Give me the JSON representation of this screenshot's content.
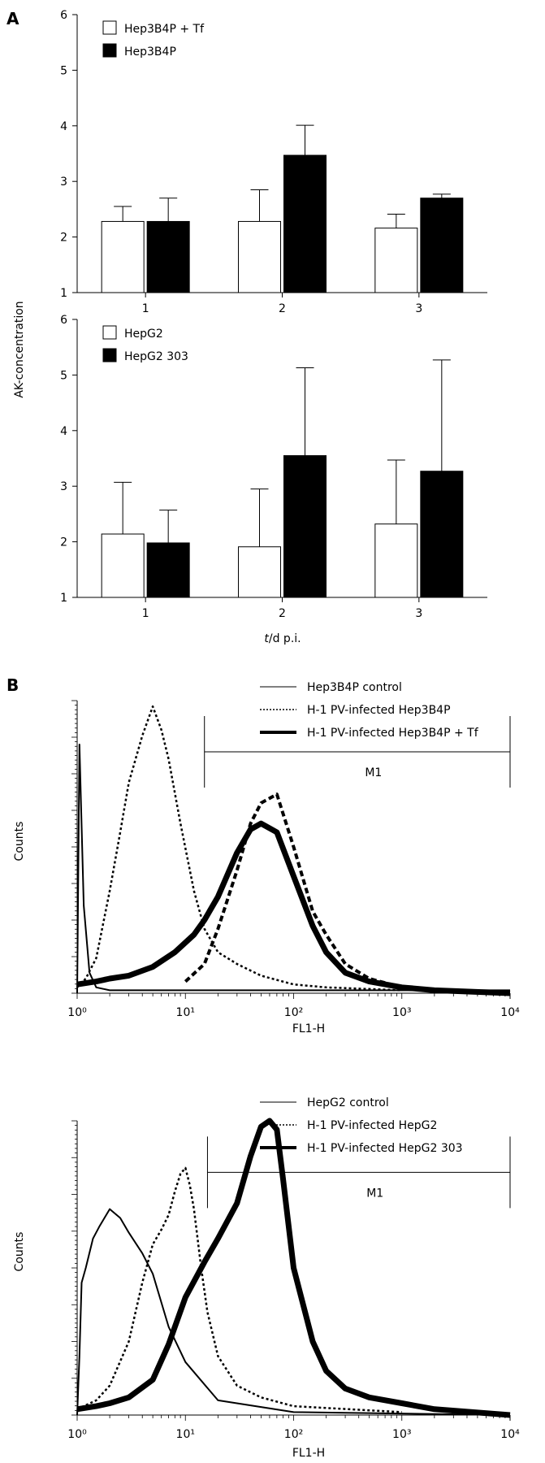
{
  "panel_labels": [
    "A",
    "B"
  ],
  "chart_data": [
    {
      "type": "bar",
      "panel": "A",
      "title": "",
      "xlabel": "",
      "ylabel": "AK-concentration",
      "ylim": [
        1,
        6
      ],
      "yticks": [
        1,
        2,
        3,
        4,
        5,
        6
      ],
      "categories": [
        "1",
        "2",
        "3"
      ],
      "legend_position": "top-left",
      "series": [
        {
          "name": "Hep3B4P + Tf",
          "fill": "#ffffff",
          "values": [
            2.28,
            2.28,
            2.16
          ],
          "errors": [
            0.27,
            0.57,
            0.25
          ]
        },
        {
          "name": "Hep3B4P",
          "fill": "#000000",
          "values": [
            2.28,
            3.47,
            2.7
          ],
          "errors": [
            0.42,
            0.54,
            0.07
          ]
        }
      ]
    },
    {
      "type": "bar",
      "panel": "A",
      "title": "",
      "xlabel": "t/d p.i.",
      "ylabel": "AK-concentration",
      "ylim": [
        1,
        6
      ],
      "yticks": [
        1,
        2,
        3,
        4,
        5,
        6
      ],
      "categories": [
        "1",
        "2",
        "3"
      ],
      "legend_position": "top-left",
      "series": [
        {
          "name": "HepG2",
          "fill": "#ffffff",
          "values": [
            2.14,
            1.91,
            2.32
          ],
          "errors": [
            0.93,
            1.04,
            1.15
          ]
        },
        {
          "name": "HepG2 303",
          "fill": "#000000",
          "values": [
            1.98,
            3.55,
            3.27
          ],
          "errors": [
            0.59,
            1.58,
            2.0
          ]
        }
      ]
    },
    {
      "type": "line",
      "panel": "B",
      "title": "",
      "xlabel": "FL1-H",
      "ylabel": "Counts",
      "x_scale": "log",
      "xlim": [
        1,
        10000
      ],
      "xticks": [
        "10⁰",
        "10¹",
        "10²",
        "10³",
        "10⁴"
      ],
      "gate": {
        "label": "M1",
        "range": [
          15,
          10000
        ]
      },
      "legend_position": "top-right",
      "series": [
        {
          "name": "Hep3B4P control",
          "style": "thin",
          "x": [
            1.0,
            1.05,
            1.15,
            1.3,
            1.5,
            2,
            3,
            5,
            10,
            100,
            1000,
            10000
          ],
          "y": [
            0.0,
            0.85,
            0.3,
            0.07,
            0.02,
            0.01,
            0.01,
            0.01,
            0.01,
            0.01,
            0.01,
            0.01
          ]
        },
        {
          "name": "H-1 PV-infected Hep3B4P",
          "style": "dotted",
          "x": [
            1.0,
            1.2,
            1.5,
            2,
            2.5,
            3,
            4,
            5,
            6,
            7,
            9,
            12,
            15,
            20,
            30,
            50,
            100,
            200,
            1000
          ],
          "y": [
            0.02,
            0.05,
            0.12,
            0.35,
            0.55,
            0.72,
            0.88,
            0.98,
            0.9,
            0.8,
            0.58,
            0.35,
            0.22,
            0.14,
            0.1,
            0.06,
            0.03,
            0.02,
            0.01
          ]
        },
        {
          "name": "H-1 PV-infected Hep3B4P + Tf",
          "style": "thick",
          "x": [
            1.0,
            1.5,
            2,
            3,
            5,
            8,
            12,
            15,
            20,
            30,
            40,
            50,
            70,
            100,
            150,
            200,
            300,
            500,
            1000,
            2000,
            10000
          ],
          "y": [
            0.03,
            0.04,
            0.05,
            0.06,
            0.09,
            0.14,
            0.2,
            0.25,
            0.33,
            0.48,
            0.56,
            0.58,
            0.55,
            0.4,
            0.23,
            0.14,
            0.07,
            0.04,
            0.02,
            0.01,
            0.0
          ]
        },
        {
          "name": "H-1 PV-infected Hep3B4P (dashed)",
          "style": "dashed",
          "x": [
            10,
            15,
            20,
            30,
            40,
            50,
            70,
            100,
            150,
            200,
            300,
            500,
            1000
          ],
          "y": [
            0.04,
            0.1,
            0.22,
            0.42,
            0.58,
            0.65,
            0.68,
            0.5,
            0.28,
            0.2,
            0.1,
            0.05,
            0.02
          ]
        }
      ]
    },
    {
      "type": "line",
      "panel": "B",
      "title": "",
      "xlabel": "FL1-H",
      "ylabel": "Counts",
      "x_scale": "log",
      "xlim": [
        1,
        10000
      ],
      "xticks": [
        "10⁰",
        "10¹",
        "10²",
        "10³",
        "10⁴"
      ],
      "gate": {
        "label": "M1",
        "range": [
          16,
          10000
        ]
      },
      "legend_position": "top-right",
      "series": [
        {
          "name": "HepG2 control",
          "style": "thin",
          "x": [
            1.0,
            1.05,
            1.1,
            1.2,
            1.4,
            1.6,
            2,
            2.5,
            3,
            4,
            5,
            7,
            10,
            20,
            100,
            10000
          ],
          "y": [
            0.0,
            0.2,
            0.45,
            0.5,
            0.6,
            0.64,
            0.7,
            0.67,
            0.62,
            0.55,
            0.48,
            0.3,
            0.18,
            0.05,
            0.01,
            0.0
          ]
        },
        {
          "name": "H-1 PV-infected HepG2",
          "style": "dotted",
          "x": [
            1.0,
            1.5,
            2,
            3,
            4,
            5,
            6,
            7,
            8,
            9,
            10,
            11,
            12,
            14,
            16,
            20,
            30,
            50,
            100,
            1000
          ],
          "y": [
            0.02,
            0.05,
            0.1,
            0.25,
            0.45,
            0.58,
            0.63,
            0.68,
            0.76,
            0.82,
            0.84,
            0.78,
            0.7,
            0.5,
            0.35,
            0.2,
            0.1,
            0.06,
            0.03,
            0.01
          ]
        },
        {
          "name": "H-1 PV-infected HepG2 303",
          "style": "thick",
          "x": [
            1.0,
            1.5,
            2,
            3,
            5,
            7,
            10,
            15,
            20,
            30,
            40,
            50,
            60,
            70,
            80,
            100,
            150,
            200,
            300,
            500,
            1000,
            2000,
            10000
          ],
          "y": [
            0.02,
            0.03,
            0.04,
            0.06,
            0.12,
            0.24,
            0.4,
            0.52,
            0.6,
            0.72,
            0.88,
            0.98,
            1.0,
            0.97,
            0.8,
            0.5,
            0.25,
            0.15,
            0.09,
            0.06,
            0.04,
            0.02,
            0.0
          ]
        }
      ]
    }
  ]
}
